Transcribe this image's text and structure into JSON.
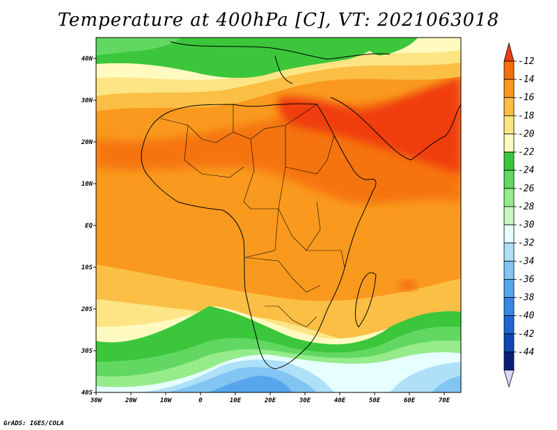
{
  "title": "Temperature at 400hPa [C], VT: 2021063018",
  "credit": "GrADS: IGES/COLA",
  "map": {
    "lon_labels": [
      "30W",
      "20W",
      "10W",
      "0",
      "10E",
      "20E",
      "30E",
      "40E",
      "50E",
      "60E",
      "70E"
    ],
    "lat_labels": [
      "40N",
      "30N",
      "20N",
      "10N",
      "EQ",
      "10S",
      "20S",
      "30S",
      "40S"
    ],
    "lon_range": [
      -30,
      75
    ],
    "lat_range": [
      -40,
      45
    ]
  },
  "colorbar": {
    "labels": [
      "-12",
      "-14",
      "-16",
      "-18",
      "-20",
      "-22",
      "-24",
      "-26",
      "-28",
      "-30",
      "-32",
      "-34",
      "-36",
      "-38",
      "-40",
      "-42",
      "-44"
    ],
    "colors": [
      "#f03c10",
      "#f56e0c",
      "#f99a1e",
      "#fbbf45",
      "#fde585",
      "#fffac0",
      "#3cc63c",
      "#62d862",
      "#96ec8a",
      "#c8f8c0",
      "#e6ffff",
      "#aee0f8",
      "#82c4f2",
      "#56a6ec",
      "#3688e2",
      "#1f66d2",
      "#0f44b2",
      "#0a2078",
      "#d8d8f8"
    ]
  }
}
